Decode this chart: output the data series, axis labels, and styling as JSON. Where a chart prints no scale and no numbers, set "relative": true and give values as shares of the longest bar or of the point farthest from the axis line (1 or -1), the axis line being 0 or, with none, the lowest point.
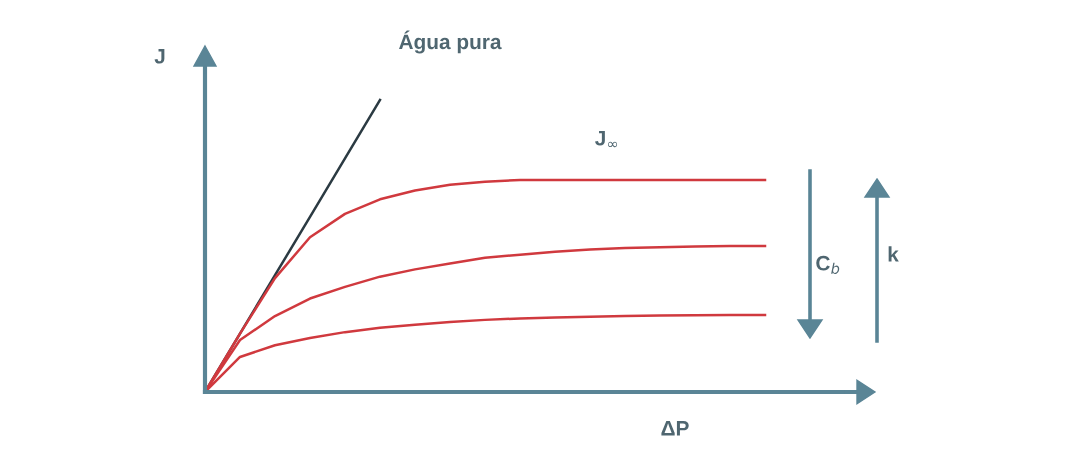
{
  "chart_data": {
    "type": "line",
    "relative": true,
    "xlabel": "ΔP",
    "ylabel": "J",
    "marker": "none",
    "line_style": "solid",
    "annotations": [
      "Água pura",
      "J$_{∞}$",
      "C$_{b}$",
      "k"
    ],
    "categories": [
      null,
      null,
      null,
      null,
      null,
      null,
      null,
      null,
      null,
      null,
      null,
      null,
      null,
      null,
      null,
      null,
      null
    ],
    "series": [
      {
        "color": "#2b3a42",
        "values": [
          0,
          0.2,
          0.4,
          0.6,
          0.8,
          1,
          null,
          null,
          null,
          null,
          null,
          null,
          null,
          null,
          null,
          null,
          null
        ]
      },
      {
        "color": "#d0393e",
        "values": [
          0,
          0.2,
          0.39,
          0.53,
          0.61,
          0.66,
          0.69,
          0.71,
          0.72,
          0.726,
          0.726,
          0.726,
          0.726,
          0.726,
          0.726,
          0.726,
          0.726
        ]
      },
      {
        "color": "#d0393e",
        "values": [
          0,
          0.178,
          0.26,
          0.32,
          0.36,
          0.395,
          0.42,
          0.44,
          0.46,
          0.47,
          0.48,
          0.488,
          0.493,
          0.496,
          0.498,
          0.5,
          0.5
        ]
      },
      {
        "color": "#d0393e",
        "values": [
          0,
          0.12,
          0.16,
          0.185,
          0.205,
          0.22,
          0.23,
          0.24,
          0.247,
          0.252,
          0.255,
          0.258,
          0.26,
          0.262,
          0.263,
          0.264,
          0.264
        ]
      }
    ]
  }
}
